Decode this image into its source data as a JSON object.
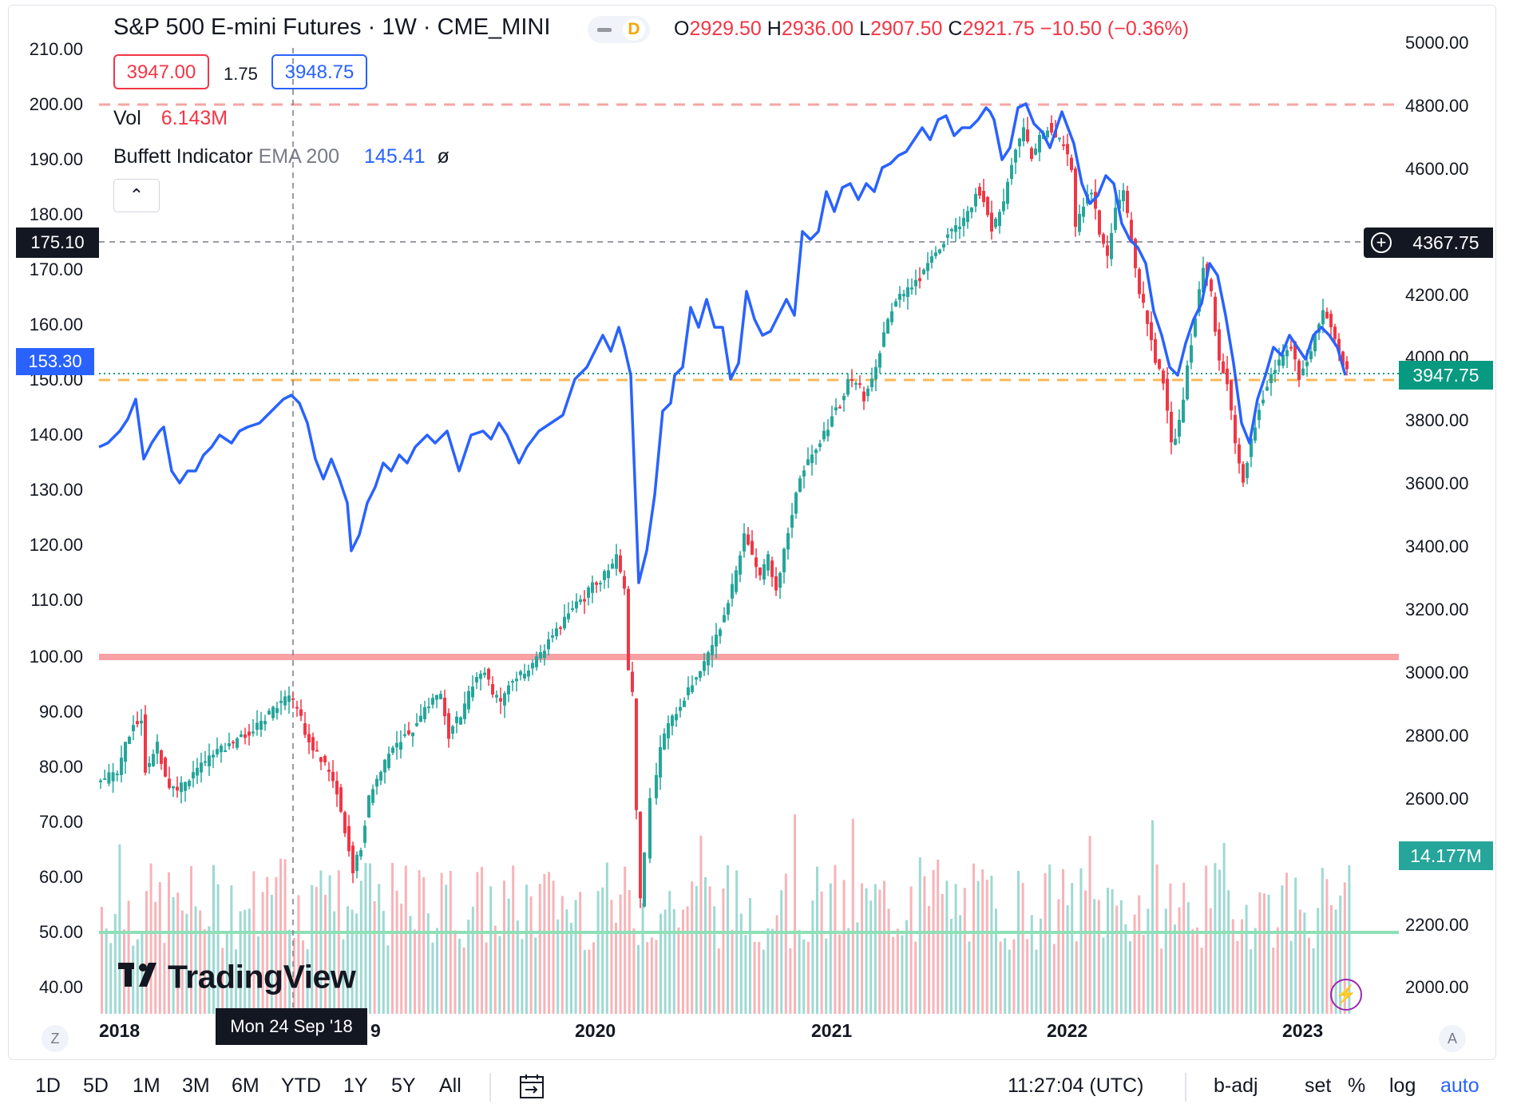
{
  "header": {
    "title": "S&P 500 E-mini Futures · 1W · CME_MINI",
    "badge": "D",
    "ohlc": {
      "o_label": "O",
      "o_value": "2929.50",
      "h_label": "H",
      "h_value": "2936.00",
      "l_label": "L",
      "l_value": "2907.50",
      "c_label": "C",
      "c_value": "2921.75",
      "change": "−10.50 (−0.36%)"
    },
    "bid": "3947.00",
    "spread": "1.75",
    "ask": "3948.75",
    "volume_label": "Vol",
    "volume_value": "6.143M",
    "indicator_name": "Buffett Indicator",
    "indicator_params": "EMA 200",
    "indicator_value": "145.41",
    "indicator_symbol": "ø"
  },
  "left_axis": [
    "210.00",
    "200.00",
    "190.00",
    "180.00",
    "170.00",
    "160.00",
    "150.00",
    "140.00",
    "130.00",
    "120.00",
    "110.00",
    "100.00",
    "90.00",
    "80.00",
    "70.00",
    "60.00",
    "50.00",
    "40.00"
  ],
  "right_axis": [
    "5000.00",
    "4800.00",
    "4600.00",
    "4200.00",
    "4000.00",
    "3800.00",
    "3600.00",
    "3400.00",
    "3200.00",
    "3000.00",
    "2800.00",
    "2600.00",
    "2200.00",
    "2000.00"
  ],
  "x_axis": {
    "labels": [
      "2018",
      "2020",
      "2021",
      "2022",
      "2023"
    ],
    "partial": "9"
  },
  "crosshair": {
    "date": "Mon 24 Sep '18",
    "left_value": "175.10",
    "right_value": "4367.75"
  },
  "tags": {
    "indicator_last": "153.30",
    "price_last": "3947.75",
    "volume_last": "14.177M"
  },
  "colors": {
    "up": "#26a69a",
    "down": "#f23645",
    "indicator": "#2962ff",
    "level_100": "#f7a1a5",
    "level_50": "#8fe0b7",
    "dashed_200": "#f4a5a5",
    "dashed_150": "#f9b859"
  },
  "watermark": "TradingView",
  "bottom_left_btn": "Z",
  "bottom_right_btn": "A",
  "toolbar": {
    "ranges": [
      "1D",
      "5D",
      "1M",
      "3M",
      "6M",
      "YTD",
      "1Y",
      "5Y",
      "All"
    ],
    "time": "11:27:04 (UTC)",
    "options": [
      "b-adj",
      "set",
      "%",
      "log",
      "auto"
    ]
  }
}
